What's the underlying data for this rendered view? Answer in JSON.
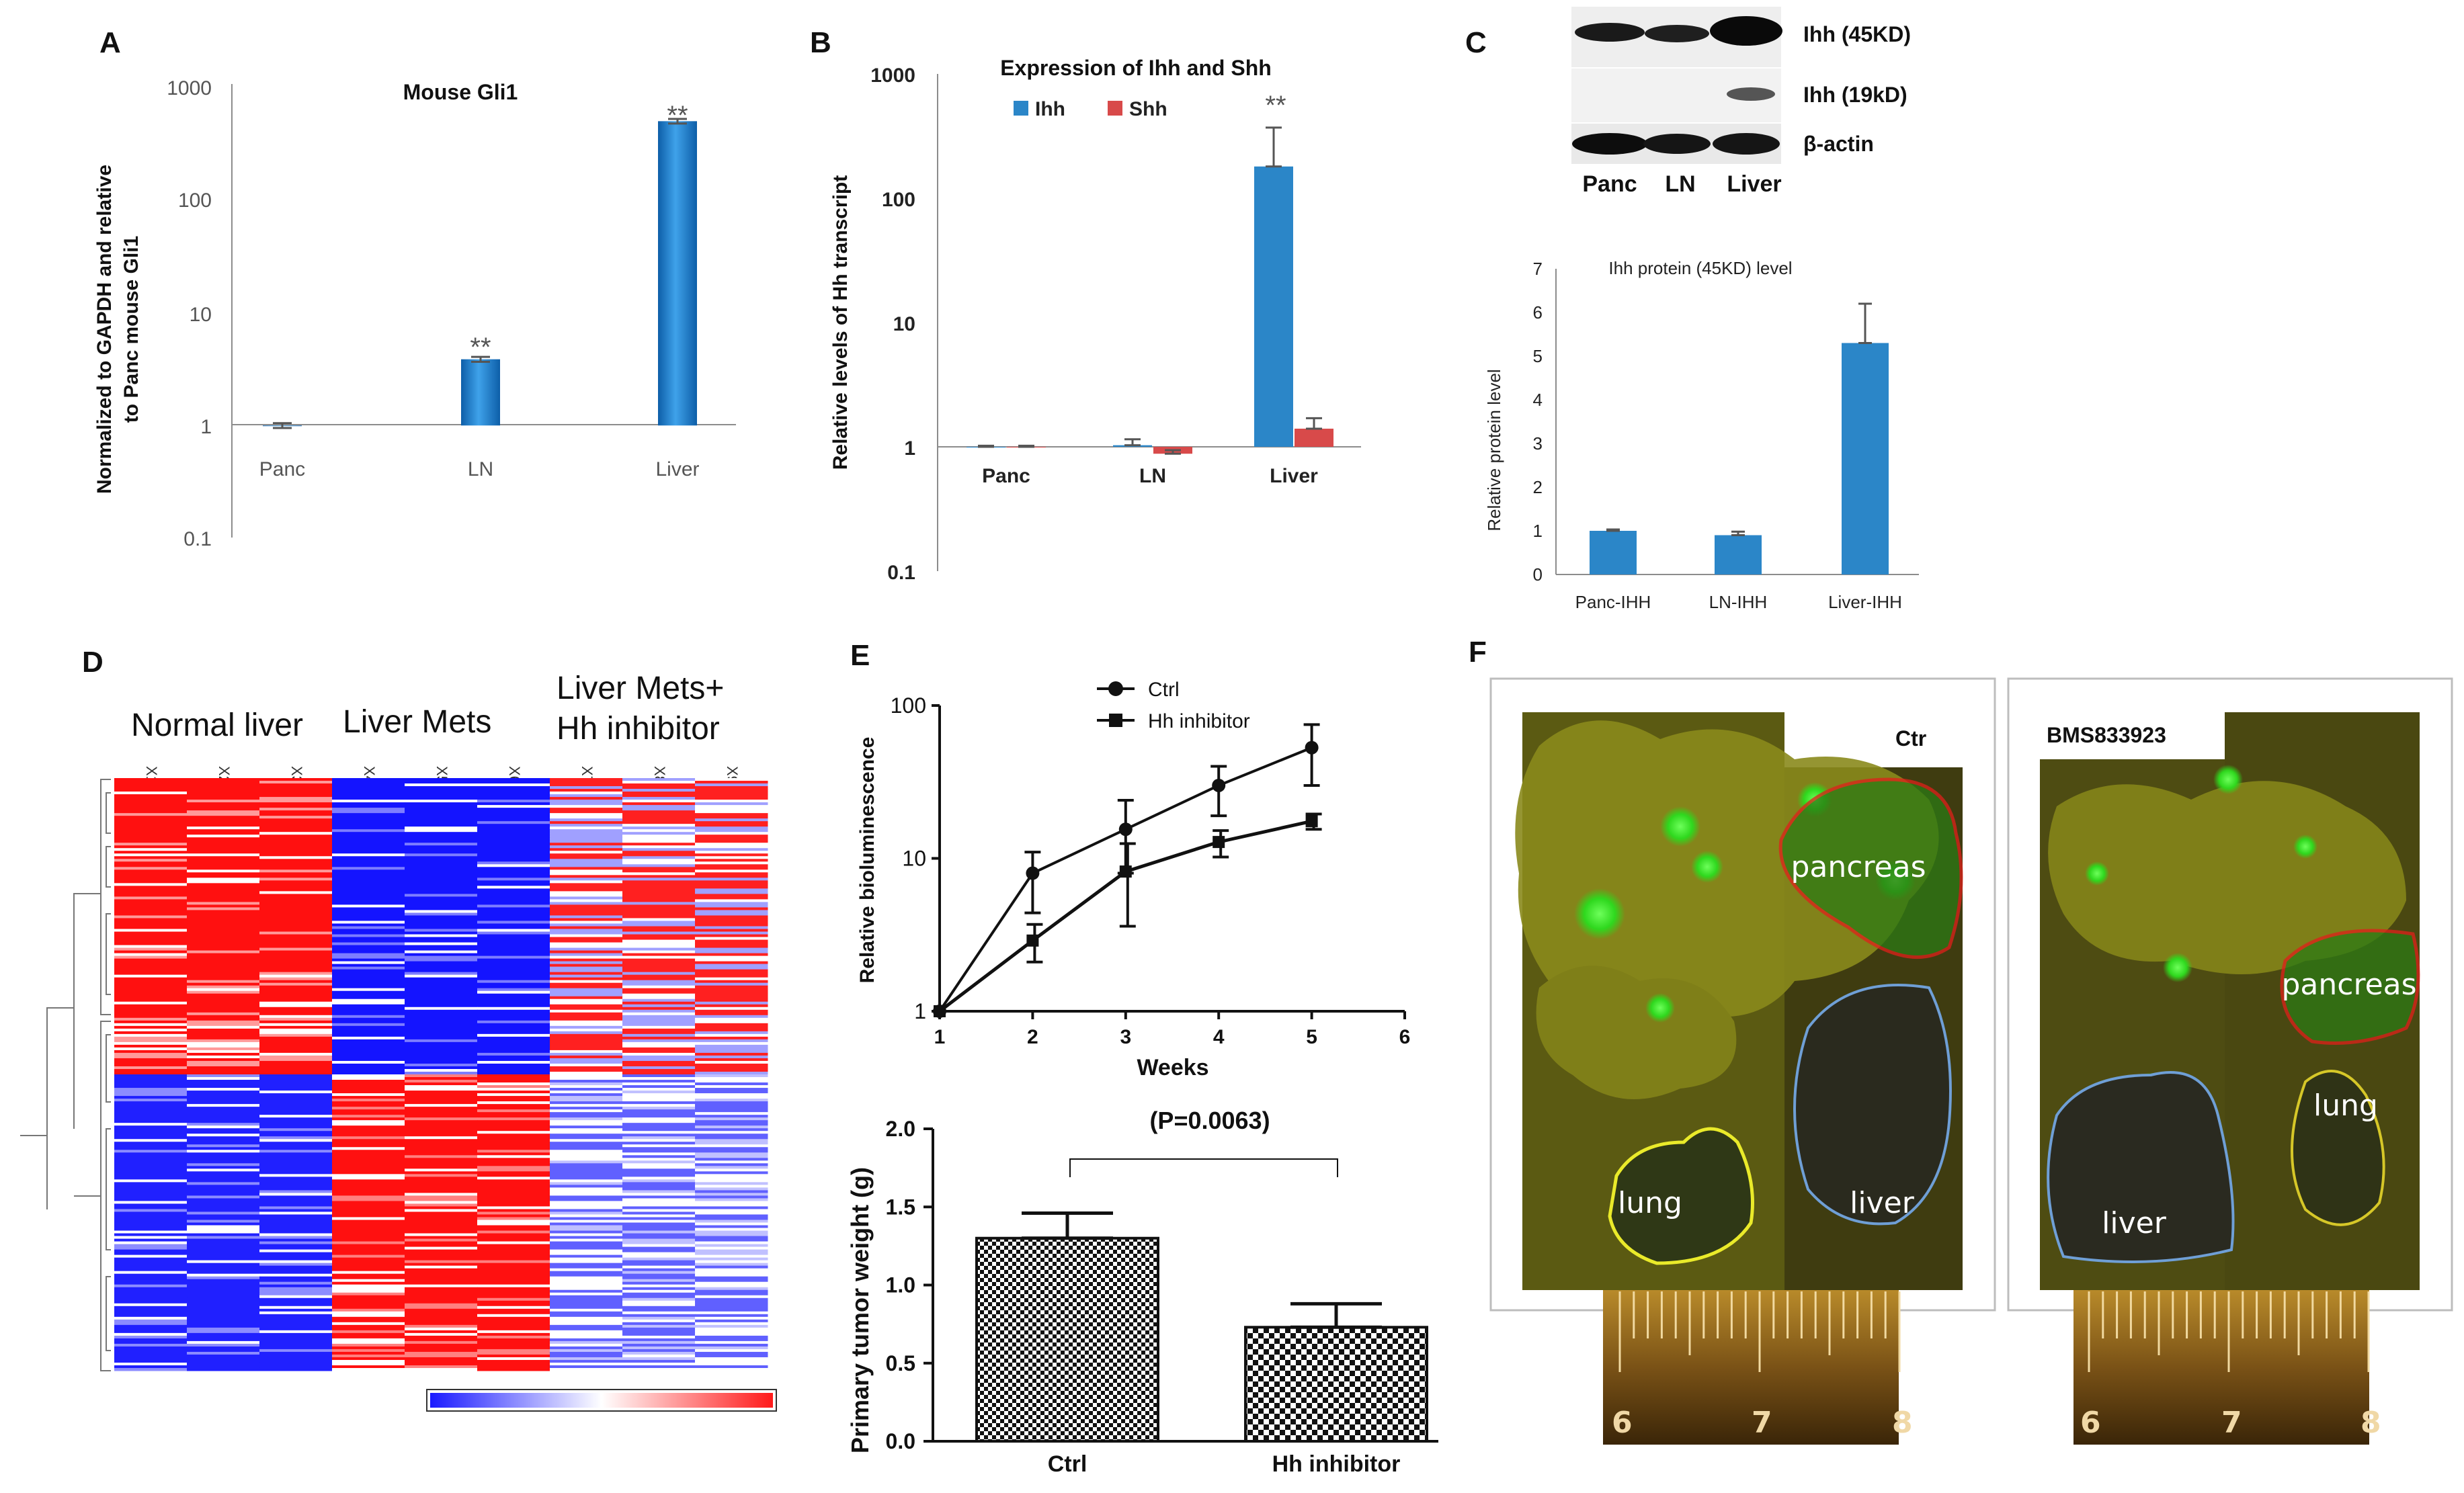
{
  "panels": {
    "A": "A",
    "B": "B",
    "C": "C",
    "D": "D",
    "E": "E",
    "F": "F"
  },
  "chart_data": [
    {
      "id": "A",
      "type": "bar",
      "title": "Mouse Gli1",
      "ylabel_line1": "Normalized to GAPDH and relative",
      "ylabel_line2": "to Panc mouse Gli1",
      "yscale": "log",
      "ylim": [
        0.1,
        1000
      ],
      "yticks": [
        "0.1",
        "1",
        "10",
        "100",
        "1000"
      ],
      "categories": [
        "Panc",
        "LN",
        "Liver"
      ],
      "values": [
        1,
        3.9,
        520
      ],
      "errors": [
        0.05,
        0.2,
        25
      ],
      "annotations": [
        "",
        "**",
        "**"
      ],
      "color": "#1e7ac8"
    },
    {
      "id": "B",
      "type": "bar",
      "title": "Expression of Ihh and Shh",
      "ylabel": "Relative levels of Hh transcript",
      "yscale": "log",
      "ylim": [
        0.1,
        1000
      ],
      "yticks": [
        "0.1",
        "1",
        "10",
        "100",
        "1000"
      ],
      "categories": [
        "Panc",
        "LN",
        "Liver"
      ],
      "series": [
        {
          "name": "Ihh",
          "values": [
            1,
            1.03,
            180
          ],
          "errors": [
            0.02,
            0.12,
            190
          ],
          "color": "#2b86c8"
        },
        {
          "name": "Shh",
          "values": [
            1,
            0.88,
            1.4
          ],
          "errors": [
            0.02,
            0.06,
            0.3
          ],
          "color": "#d84a4a"
        }
      ],
      "annotations": [
        "",
        "",
        "**"
      ],
      "legend": "top"
    },
    {
      "id": "C-bar",
      "type": "bar",
      "title": "Ihh protein (45KD) level",
      "ylabel": "Relative protein level",
      "ylim": [
        0,
        7
      ],
      "yticks": [
        "0",
        "1",
        "2",
        "3",
        "4",
        "5",
        "6",
        "7"
      ],
      "categories": [
        "Panc-IHH",
        "LN-IHH",
        "Liver-IHH"
      ],
      "values": [
        1.0,
        0.9,
        5.3
      ],
      "errors": [
        0.03,
        0.08,
        0.9
      ],
      "color": "#2b86c8"
    },
    {
      "id": "E-line",
      "type": "line",
      "xlabel": "Weeks",
      "ylabel": "Relative bioluminescence",
      "yscale": "log",
      "ylim": [
        1,
        100
      ],
      "xlim": [
        1,
        6
      ],
      "yticks": [
        "1",
        "10",
        "100"
      ],
      "xticks": [
        "1",
        "2",
        "3",
        "4",
        "5",
        "6"
      ],
      "x": [
        1,
        2,
        3,
        4,
        5
      ],
      "series": [
        {
          "name": "Ctrl",
          "values": [
            1,
            8,
            15.5,
            30,
            53
          ],
          "err_lo": [
            1,
            4.4,
            8,
            19,
            30
          ],
          "err_hi": [
            1,
            11,
            24,
            40,
            75
          ]
        },
        {
          "name": "Hh inhibitor",
          "values": [
            1,
            2.9,
            8.2,
            12.8,
            17.5
          ],
          "err_lo": [
            1,
            2.1,
            3.6,
            10.2,
            15.5
          ],
          "err_hi": [
            1,
            3.7,
            12.5,
            15.2,
            19.5
          ]
        }
      ],
      "legend": "top-left"
    },
    {
      "id": "E-bar",
      "type": "bar",
      "ylabel": "Primary tumor weight (g)",
      "ylim": [
        0,
        2.0
      ],
      "yticks": [
        "0.0",
        "0.5",
        "1.0",
        "1.5",
        "2.0"
      ],
      "categories": [
        "Ctrl",
        "Hh inhibitor"
      ],
      "values": [
        1.3,
        0.73
      ],
      "errors": [
        0.16,
        0.15
      ],
      "pvalue": "(P=0.0063)"
    }
  ],
  "blot": {
    "bands": [
      "Ihh (45KD)",
      "Ihh (19kD)",
      "β-actin"
    ],
    "lanes": [
      "Panc",
      "LN",
      "Liver"
    ]
  },
  "heatmap": {
    "groups": [
      "Normal liver",
      "Liver Mets",
      "Liver Mets+",
      "Hh inhibitor"
    ],
    "columns": [
      "X1",
      "X2",
      "X3",
      "X4",
      "X5",
      "X6",
      "X7",
      "X8",
      "X9"
    ]
  },
  "photos": {
    "left_label": "Ctr",
    "right_label": "BMS833923",
    "left_organs": [
      "pancreas",
      "lung",
      "liver"
    ],
    "right_organs": [
      "pancreas",
      "lung",
      "liver"
    ],
    "ruler": [
      "6",
      "7",
      "8"
    ]
  }
}
